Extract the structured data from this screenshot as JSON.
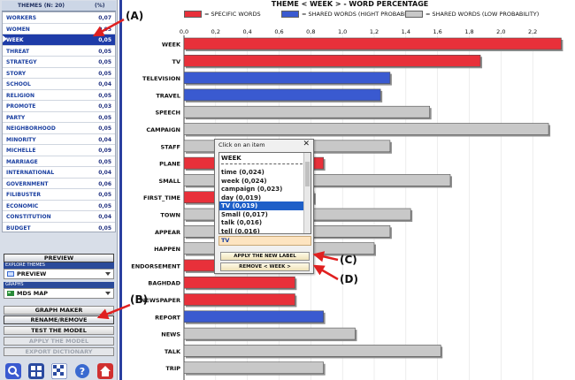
{
  "themes_panel": {
    "header_label": "THEMES (N: 20)",
    "header_pct": "(%)",
    "items": [
      {
        "name": "WORKERS",
        "value": "0,07",
        "selected": false
      },
      {
        "name": "WOMEN",
        "value": "0,05",
        "selected": false
      },
      {
        "name": "WEEK",
        "value": "0,05",
        "selected": true
      },
      {
        "name": "THREAT",
        "value": "0,05",
        "selected": false
      },
      {
        "name": "STRATEGY",
        "value": "0,05",
        "selected": false
      },
      {
        "name": "STORY",
        "value": "0,05",
        "selected": false
      },
      {
        "name": "SCHOOL",
        "value": "0,04",
        "selected": false
      },
      {
        "name": "RELIGION",
        "value": "0,05",
        "selected": false
      },
      {
        "name": "PROMOTE",
        "value": "0,03",
        "selected": false
      },
      {
        "name": "PARTY",
        "value": "0,05",
        "selected": false
      },
      {
        "name": "NEIGHBORHOOD",
        "value": "0,05",
        "selected": false
      },
      {
        "name": "MINORITY",
        "value": "0,04",
        "selected": false
      },
      {
        "name": "MICHELLE",
        "value": "0,09",
        "selected": false
      },
      {
        "name": "MARRIAGE",
        "value": "0,05",
        "selected": false
      },
      {
        "name": "INTERNATIONAL",
        "value": "0,04",
        "selected": false
      },
      {
        "name": "GOVERNMENT",
        "value": "0,06",
        "selected": false
      },
      {
        "name": "FILIBUSTER",
        "value": "0,05",
        "selected": false
      },
      {
        "name": "ECONOMIC",
        "value": "0,05",
        "selected": false
      },
      {
        "name": "CONSTITUTION",
        "value": "0,04",
        "selected": false
      },
      {
        "name": "BUDGET",
        "value": "0,05",
        "selected": false
      }
    ]
  },
  "left_controls": {
    "preview_button": "PREVIEW",
    "explore_label": "EXPLORE THEMES",
    "explore_value": "PREVIEW",
    "graph_label": "GRAPHS",
    "graph_value": "MDS MAP",
    "graph_maker_button": "GRAPH MAKER",
    "rename_button": "RENAME/REMOVE",
    "test_button": "TEST THE MODEL",
    "apply_button": "APPLY THE MODEL",
    "export_button": "EXPORT DICTIONARY"
  },
  "chart": {
    "title": "THEME < WEEK > - WORD PERCENTAGE",
    "legend": [
      {
        "label": "= SPECIFIC WORDS",
        "color": "#e8303a"
      },
      {
        "label": "= SHARED WORDS (HIGHT PROBABILITY)",
        "color": "#3a5ad0"
      },
      {
        "label": "= SHARED WORDS (LOW PROBABILITY)",
        "color": "#c8c8c8"
      }
    ]
  },
  "chart_data": {
    "type": "bar",
    "orientation": "horizontal",
    "title": "THEME < WEEK > - WORD PERCENTAGE",
    "xlim": [
      0,
      2.4
    ],
    "ticks": [
      "0,0",
      "0,2",
      "0,4",
      "0,6",
      "0,8",
      "1,0",
      "1,2",
      "1,4",
      "1,6",
      "1,8",
      "2,0",
      "2,2"
    ],
    "categories": [
      "WEEK",
      "TV",
      "TELEVISION",
      "TRAVEL",
      "SPEECH",
      "CAMPAIGN",
      "STAFF",
      "PLANE",
      "SMALL",
      "FIRST_TIME",
      "TOWN",
      "APPEAR",
      "HAPPEN",
      "ENDORSEMENT",
      "BAGHDAD",
      "NEWSPAPER",
      "REPORT",
      "NEWS",
      "TALK",
      "TRIP"
    ],
    "values": [
      2.38,
      1.87,
      1.3,
      1.24,
      1.55,
      2.3,
      1.3,
      0.88,
      1.68,
      0.82,
      1.43,
      1.3,
      1.2,
      0.74,
      0.7,
      0.7,
      0.88,
      1.08,
      1.62,
      0.88
    ],
    "groups": [
      "specific",
      "specific",
      "shared_high",
      "shared_high",
      "shared_low",
      "shared_low",
      "shared_low",
      "specific",
      "shared_low",
      "specific",
      "shared_low",
      "shared_low",
      "shared_low",
      "specific",
      "specific",
      "specific",
      "shared_high",
      "shared_low",
      "shared_low",
      "shared_low"
    ],
    "group_colors": {
      "specific": "#e8303a",
      "shared_high": "#3a5ad0",
      "shared_low": "#c8c8c8"
    }
  },
  "popup": {
    "title": "Click on an item",
    "close": "✕",
    "header": "WEEK",
    "items": [
      "time (0,024)",
      "week (0,024)",
      "campaign (0,023)",
      "day (0,019)",
      "TV (0,019)",
      "Small (0,017)",
      "talk (0,016)",
      "tell (0,016)"
    ],
    "selected_index": 4,
    "input_value": "TV",
    "apply_label": "APPLY THE NEW LABEL",
    "remove_label": "REMOVE < WEEK >"
  },
  "annotations": {
    "a": "(A)",
    "b": "(B)",
    "c": "(C)",
    "d": "(D)"
  }
}
